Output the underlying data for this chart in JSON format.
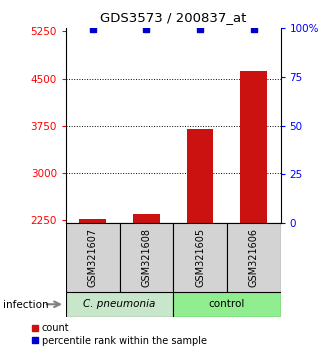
{
  "title": "GDS3573 / 200837_at",
  "samples": [
    "GSM321607",
    "GSM321608",
    "GSM321605",
    "GSM321606"
  ],
  "counts": [
    2261,
    2338,
    3690,
    4620
  ],
  "percentiles": [
    99.5,
    99.5,
    99.5,
    99.5
  ],
  "group_labels": [
    "C. pneumonia",
    "control"
  ],
  "sample_box_color": "#d3d3d3",
  "cpneumonia_color": "#c8e6c9",
  "control_color": "#90ee90",
  "bar_color": "#cc1111",
  "dot_color": "#0000cc",
  "ylim_left": [
    2200,
    5300
  ],
  "yticks_left": [
    2250,
    3000,
    3750,
    4500,
    5250
  ],
  "ylim_right": [
    0,
    100
  ],
  "yticks_right": [
    0,
    25,
    50,
    75,
    100
  ],
  "ytick_labels_right": [
    "0",
    "25",
    "50",
    "75",
    "100%"
  ],
  "gridlines_at": [
    3000,
    3750,
    4500
  ],
  "legend_red": "count",
  "legend_blue": "percentile rank within the sample",
  "infection_label": "infection"
}
